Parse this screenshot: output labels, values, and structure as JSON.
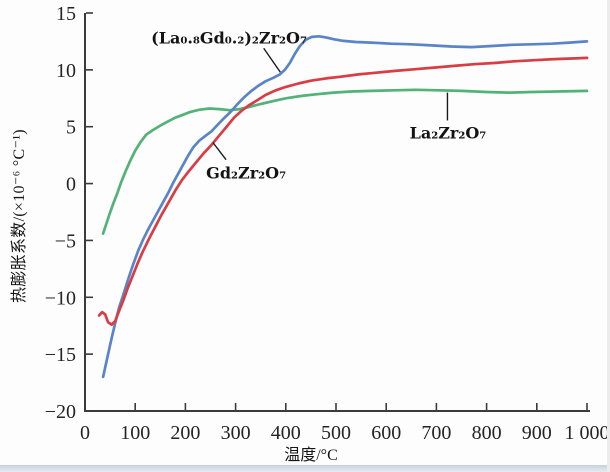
{
  "chart_data": {
    "type": "line",
    "title": "",
    "xlabel": "温度/°C",
    "ylabel": "热膨胀系数/(×10⁻⁶ °C⁻¹)",
    "xlim": [
      0,
      1000
    ],
    "ylim": [
      -20,
      15
    ],
    "grid": false,
    "legend_position": "inline-annotations",
    "x_ticks": [
      0,
      100,
      200,
      300,
      400,
      500,
      600,
      700,
      800,
      900,
      1000
    ],
    "x_tick_labels": [
      "0",
      "100",
      "200",
      "300",
      "400",
      "500",
      "600",
      "700",
      "800",
      "900",
      "1 000"
    ],
    "y_ticks": [
      15,
      10,
      5,
      0,
      -5,
      -10,
      -15,
      -20
    ],
    "y_tick_labels": [
      "15",
      "10",
      "5",
      "0",
      "−5",
      "−10",
      "−15",
      "−20"
    ],
    "series": [
      {
        "name": "La₂Zr₂O₇",
        "slug": "la2zr2o7-curve",
        "color": "#52b277",
        "points": [
          [
            36,
            -4.4
          ],
          [
            42,
            -3.6
          ],
          [
            48,
            -2.8
          ],
          [
            56,
            -1.8
          ],
          [
            64,
            -0.9
          ],
          [
            72,
            0.1
          ],
          [
            80,
            1.0
          ],
          [
            90,
            2.0
          ],
          [
            100,
            2.9
          ],
          [
            110,
            3.6
          ],
          [
            122,
            4.3
          ],
          [
            135,
            4.7
          ],
          [
            150,
            5.1
          ],
          [
            165,
            5.45
          ],
          [
            180,
            5.8
          ],
          [
            195,
            6.05
          ],
          [
            210,
            6.3
          ],
          [
            228,
            6.5
          ],
          [
            248,
            6.6
          ],
          [
            268,
            6.55
          ],
          [
            288,
            6.45
          ],
          [
            308,
            6.55
          ],
          [
            328,
            6.75
          ],
          [
            350,
            7.0
          ],
          [
            375,
            7.25
          ],
          [
            400,
            7.5
          ],
          [
            430,
            7.7
          ],
          [
            460,
            7.85
          ],
          [
            495,
            8.0
          ],
          [
            530,
            8.1
          ],
          [
            570,
            8.15
          ],
          [
            615,
            8.2
          ],
          [
            660,
            8.25
          ],
          [
            705,
            8.2
          ],
          [
            750,
            8.15
          ],
          [
            800,
            8.05
          ],
          [
            845,
            8.0
          ],
          [
            890,
            8.05
          ],
          [
            940,
            8.1
          ],
          [
            1000,
            8.15
          ]
        ]
      },
      {
        "name": "(La₀.₈Gd₀.₂)₂Zr₂O₇",
        "slug": "la08gd02-zr2o7-curve",
        "color": "#5b84c8",
        "points": [
          [
            36,
            -17.0
          ],
          [
            44,
            -15.4
          ],
          [
            52,
            -13.8
          ],
          [
            60,
            -12.3
          ],
          [
            68,
            -10.9
          ],
          [
            76,
            -9.8
          ],
          [
            86,
            -8.4
          ],
          [
            96,
            -7.1
          ],
          [
            106,
            -5.9
          ],
          [
            116,
            -4.9
          ],
          [
            126,
            -4.0
          ],
          [
            136,
            -3.2
          ],
          [
            146,
            -2.4
          ],
          [
            156,
            -1.6
          ],
          [
            166,
            -0.8
          ],
          [
            176,
            0.1
          ],
          [
            186,
            0.9
          ],
          [
            196,
            1.7
          ],
          [
            206,
            2.5
          ],
          [
            216,
            3.2
          ],
          [
            228,
            3.8
          ],
          [
            240,
            4.2
          ],
          [
            252,
            4.6
          ],
          [
            265,
            5.2
          ],
          [
            278,
            5.8
          ],
          [
            290,
            6.3
          ],
          [
            302,
            6.9
          ],
          [
            315,
            7.5
          ],
          [
            330,
            8.1
          ],
          [
            345,
            8.6
          ],
          [
            360,
            9.0
          ],
          [
            375,
            9.3
          ],
          [
            388,
            9.6
          ],
          [
            398,
            10.0
          ],
          [
            408,
            10.6
          ],
          [
            418,
            11.4
          ],
          [
            428,
            12.1
          ],
          [
            440,
            12.65
          ],
          [
            452,
            12.9
          ],
          [
            466,
            12.95
          ],
          [
            480,
            12.85
          ],
          [
            495,
            12.7
          ],
          [
            515,
            12.55
          ],
          [
            540,
            12.45
          ],
          [
            570,
            12.4
          ],
          [
            610,
            12.3
          ],
          [
            650,
            12.25
          ],
          [
            690,
            12.15
          ],
          [
            730,
            12.05
          ],
          [
            770,
            12.0
          ],
          [
            810,
            12.1
          ],
          [
            850,
            12.2
          ],
          [
            890,
            12.25
          ],
          [
            930,
            12.3
          ],
          [
            965,
            12.4
          ],
          [
            1000,
            12.5
          ]
        ]
      },
      {
        "name": "Gd₂Zr₂O₇",
        "slug": "gd2zr2o7-curve",
        "color": "#d83d44",
        "points": [
          [
            28,
            -11.6
          ],
          [
            34,
            -11.3
          ],
          [
            40,
            -11.5
          ],
          [
            46,
            -12.2
          ],
          [
            53,
            -12.4
          ],
          [
            60,
            -12.1
          ],
          [
            68,
            -11.2
          ],
          [
            76,
            -10.3
          ],
          [
            85,
            -9.2
          ],
          [
            95,
            -8.1
          ],
          [
            105,
            -7.0
          ],
          [
            115,
            -6.0
          ],
          [
            127,
            -4.9
          ],
          [
            140,
            -3.8
          ],
          [
            153,
            -2.7
          ],
          [
            166,
            -1.7
          ],
          [
            180,
            -0.6
          ],
          [
            193,
            0.3
          ],
          [
            207,
            1.1
          ],
          [
            222,
            1.9
          ],
          [
            237,
            2.7
          ],
          [
            252,
            3.4
          ],
          [
            267,
            4.2
          ],
          [
            282,
            5.0
          ],
          [
            297,
            5.8
          ],
          [
            312,
            6.4
          ],
          [
            327,
            6.9
          ],
          [
            342,
            7.3
          ],
          [
            360,
            7.8
          ],
          [
            380,
            8.2
          ],
          [
            400,
            8.5
          ],
          [
            425,
            8.8
          ],
          [
            450,
            9.05
          ],
          [
            480,
            9.25
          ],
          [
            510,
            9.4
          ],
          [
            545,
            9.6
          ],
          [
            580,
            9.75
          ],
          [
            615,
            9.9
          ],
          [
            655,
            10.05
          ],
          [
            695,
            10.2
          ],
          [
            735,
            10.35
          ],
          [
            775,
            10.5
          ],
          [
            815,
            10.6
          ],
          [
            855,
            10.75
          ],
          [
            895,
            10.85
          ],
          [
            935,
            10.95
          ],
          [
            970,
            11.0
          ],
          [
            1000,
            11.05
          ]
        ]
      }
    ],
    "annotations": [
      {
        "text": "(La₀.₈Gd₀.₂)₂Zr₂O₇",
        "anchor": [
          287,
          12.78
        ],
        "leader": [
          [
            356,
            11.9
          ],
          [
            389,
            9.8
          ]
        ]
      },
      {
        "text": "Gd₂Zr₂O₇",
        "anchor": [
          321,
          0.93
        ],
        "leader": [
          [
            255,
            3.6
          ],
          [
            281,
            2.1
          ]
        ]
      },
      {
        "text": "La₂Zr₂O₇",
        "anchor": [
          723,
          4.45
        ],
        "leader": [
          [
            722,
            8.0
          ],
          [
            722,
            5.55
          ]
        ]
      }
    ]
  },
  "figure": {
    "bottom_band_color": "#c7d1de",
    "axis_color": "#3b3b3b"
  }
}
